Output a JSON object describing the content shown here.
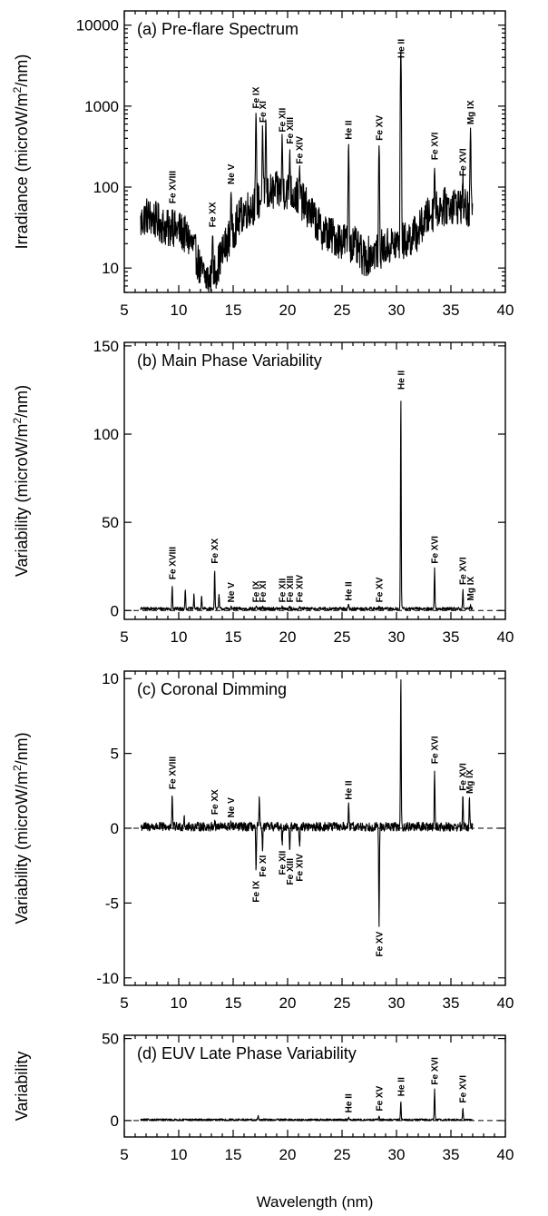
{
  "figure": {
    "xlabel": "Wavelength (nm)"
  },
  "chart_data": [
    {
      "type": "line",
      "title": "(a) Pre-flare Spectrum",
      "ylabel_main": "Irradiance (microW/m",
      "ylabel_sup": "2",
      "ylabel_end": "/nm)",
      "yscale": "log",
      "xlim": [
        5,
        40
      ],
      "ylim": [
        5,
        15000
      ],
      "xticks": [
        5,
        10,
        15,
        20,
        25,
        30,
        35,
        40
      ],
      "yticks": [
        10,
        100,
        1000,
        10000
      ],
      "ytick_labels": [
        "10",
        "100",
        "1000",
        "10000"
      ],
      "zero_line": false,
      "baseline": [
        [
          6.5,
          35
        ],
        [
          7,
          45
        ],
        [
          8,
          38
        ],
        [
          9,
          30
        ],
        [
          10,
          30
        ],
        [
          11,
          22
        ],
        [
          12,
          9
        ],
        [
          12.8,
          7
        ],
        [
          13.5,
          10
        ],
        [
          14,
          15
        ],
        [
          15,
          28
        ],
        [
          16,
          50
        ],
        [
          17,
          60
        ],
        [
          18,
          80
        ],
        [
          19,
          90
        ],
        [
          20,
          90
        ],
        [
          21,
          75
        ],
        [
          22,
          50
        ],
        [
          23,
          30
        ],
        [
          24,
          25
        ],
        [
          25,
          22
        ],
        [
          26,
          20
        ],
        [
          27,
          13
        ],
        [
          28,
          16
        ],
        [
          29,
          18
        ],
        [
          30,
          20
        ],
        [
          31,
          22
        ],
        [
          32,
          28
        ],
        [
          33,
          45
        ],
        [
          34,
          55
        ],
        [
          35,
          60
        ],
        [
          36,
          60
        ],
        [
          36.9,
          45
        ]
      ],
      "noise": 0.55,
      "lines": [
        {
          "x": 9.4,
          "y": 55,
          "label": "Fe XVIII"
        },
        {
          "x": 13.1,
          "y": 28,
          "label": "Fe XX"
        },
        {
          "x": 14.8,
          "y": 95,
          "label": "Ne V"
        },
        {
          "x": 17.1,
          "y": 820,
          "label": "Fe IX"
        },
        {
          "x": 17.7,
          "y": 550,
          "label": "Fe XI"
        },
        {
          "x": 18.0,
          "y": 700,
          "label": ""
        },
        {
          "x": 19.5,
          "y": 420,
          "label": "Fe XII"
        },
        {
          "x": 20.2,
          "y": 300,
          "label": "Fe XIII"
        },
        {
          "x": 21.1,
          "y": 170,
          "label": "Fe XIV"
        },
        {
          "x": 25.6,
          "y": 340,
          "label": "He II"
        },
        {
          "x": 28.4,
          "y": 330,
          "label": "Fe XV"
        },
        {
          "x": 30.4,
          "y": 5000,
          "label": "He II"
        },
        {
          "x": 33.5,
          "y": 190,
          "label": "Fe XVI"
        },
        {
          "x": 36.1,
          "y": 120,
          "label": "Fe XVI"
        },
        {
          "x": 36.8,
          "y": 520,
          "label": "Mg IX"
        }
      ]
    },
    {
      "type": "line",
      "title": "(b) Main Phase Variability",
      "ylabel_main": "Variability (microW/m",
      "ylabel_sup": "2",
      "ylabel_end": "/nm)",
      "yscale": "linear",
      "xlim": [
        5,
        40
      ],
      "ylim": [
        -5,
        152
      ],
      "xticks": [
        5,
        10,
        15,
        20,
        25,
        30,
        35,
        40
      ],
      "yticks": [
        0,
        50,
        100,
        150
      ],
      "ytick_labels": [
        "0",
        "50",
        "100",
        "150"
      ],
      "zero_line": true,
      "baseline": [
        [
          6.5,
          1
        ],
        [
          37,
          1
        ]
      ],
      "noise": 0.9,
      "lines": [
        {
          "x": 9.4,
          "y": 15,
          "label": "Fe XVIII"
        },
        {
          "x": 10.6,
          "y": 13,
          "label": ""
        },
        {
          "x": 11.4,
          "y": 9,
          "label": ""
        },
        {
          "x": 12.1,
          "y": 8,
          "label": ""
        },
        {
          "x": 13.3,
          "y": 24,
          "label": "Fe XX"
        },
        {
          "x": 13.7,
          "y": 9,
          "label": ""
        },
        {
          "x": 14.8,
          "y": 2,
          "label": "Ne V"
        },
        {
          "x": 17.1,
          "y": 2,
          "label": "Fe IX"
        },
        {
          "x": 17.7,
          "y": 2,
          "label": "Fe XI"
        },
        {
          "x": 19.5,
          "y": 2,
          "label": "Fe XII"
        },
        {
          "x": 20.2,
          "y": 2,
          "label": "Fe XIII"
        },
        {
          "x": 21.1,
          "y": 2,
          "label": "Fe XIV"
        },
        {
          "x": 25.6,
          "y": 3,
          "label": "He II"
        },
        {
          "x": 28.4,
          "y": 2,
          "label": "Fe XV"
        },
        {
          "x": 30.4,
          "y": 125,
          "label": "He II"
        },
        {
          "x": 33.5,
          "y": 24,
          "label": "Fe XVI"
        },
        {
          "x": 36.1,
          "y": 12,
          "label": "Fe XVI"
        },
        {
          "x": 36.8,
          "y": 3,
          "label": "Mg IX"
        }
      ]
    },
    {
      "type": "line",
      "title": "(c)  Coronal Dimming",
      "ylabel_main": "Variability (microW/m",
      "ylabel_sup": "2",
      "ylabel_end": "/nm)",
      "yscale": "linear",
      "xlim": [
        5,
        40
      ],
      "ylim": [
        -10.5,
        10.5
      ],
      "xticks": [
        5,
        10,
        15,
        20,
        25,
        30,
        35,
        40
      ],
      "yticks": [
        -10,
        -5,
        0,
        5,
        10
      ],
      "ytick_labels": [
        "-10",
        "-5",
        "0",
        "5",
        "10"
      ],
      "zero_line": true,
      "baseline": [
        [
          6.5,
          0.1
        ],
        [
          37,
          0.1
        ]
      ],
      "noise": 0.3,
      "lines": [
        {
          "x": 9.4,
          "y": 2.3,
          "label": "Fe XVIII"
        },
        {
          "x": 10.5,
          "y": 1.0,
          "label": ""
        },
        {
          "x": 13.3,
          "y": 0.6,
          "label": "Fe XX"
        },
        {
          "x": 14.8,
          "y": 0.4,
          "label": "Ne V"
        },
        {
          "x": 17.1,
          "y": -3.2,
          "label": "Fe IX"
        },
        {
          "x": 17.4,
          "y": 2.0,
          "label": ""
        },
        {
          "x": 17.7,
          "y": -1.5,
          "label": "Fe XI"
        },
        {
          "x": 19.5,
          "y": -1.2,
          "label": "Fe XII"
        },
        {
          "x": 20.2,
          "y": -1.7,
          "label": "Fe XIII"
        },
        {
          "x": 21.1,
          "y": -1.4,
          "label": "Fe XIV"
        },
        {
          "x": 25.6,
          "y": 1.6,
          "label": "He II"
        },
        {
          "x": 28.4,
          "y": -6.6,
          "label": "Fe XV"
        },
        {
          "x": 30.4,
          "y": 10.5,
          "label": ""
        },
        {
          "x": 33.5,
          "y": 4.0,
          "label": "Fe XVI"
        },
        {
          "x": 36.1,
          "y": 2.2,
          "label": "Fe XVI"
        },
        {
          "x": 36.7,
          "y": 2.0,
          "label": "Mg IX"
        }
      ]
    },
    {
      "type": "line",
      "title": "(d) EUV Late Phase Variability",
      "ylabel_main": "Variability",
      "ylabel_sup": "",
      "ylabel_end": "",
      "yscale": "linear",
      "xlim": [
        5,
        40
      ],
      "ylim": [
        -10,
        52
      ],
      "xticks": [
        5,
        10,
        15,
        20,
        25,
        30,
        35,
        40
      ],
      "yticks": [
        0,
        50
      ],
      "ytick_labels": [
        "0",
        "50"
      ],
      "zero_line": true,
      "baseline": [
        [
          6.5,
          0.5
        ],
        [
          37,
          0.5
        ]
      ],
      "noise": 0.6,
      "lines": [
        {
          "x": 17.3,
          "y": 3,
          "label": ""
        },
        {
          "x": 25.6,
          "y": 2,
          "label": "He II"
        },
        {
          "x": 28.4,
          "y": 3,
          "label": "Fe XV"
        },
        {
          "x": 30.4,
          "y": 12,
          "label": "He II"
        },
        {
          "x": 33.5,
          "y": 19,
          "label": "Fe XVI"
        },
        {
          "x": 36.1,
          "y": 8,
          "label": "Fe XVI"
        }
      ]
    }
  ]
}
